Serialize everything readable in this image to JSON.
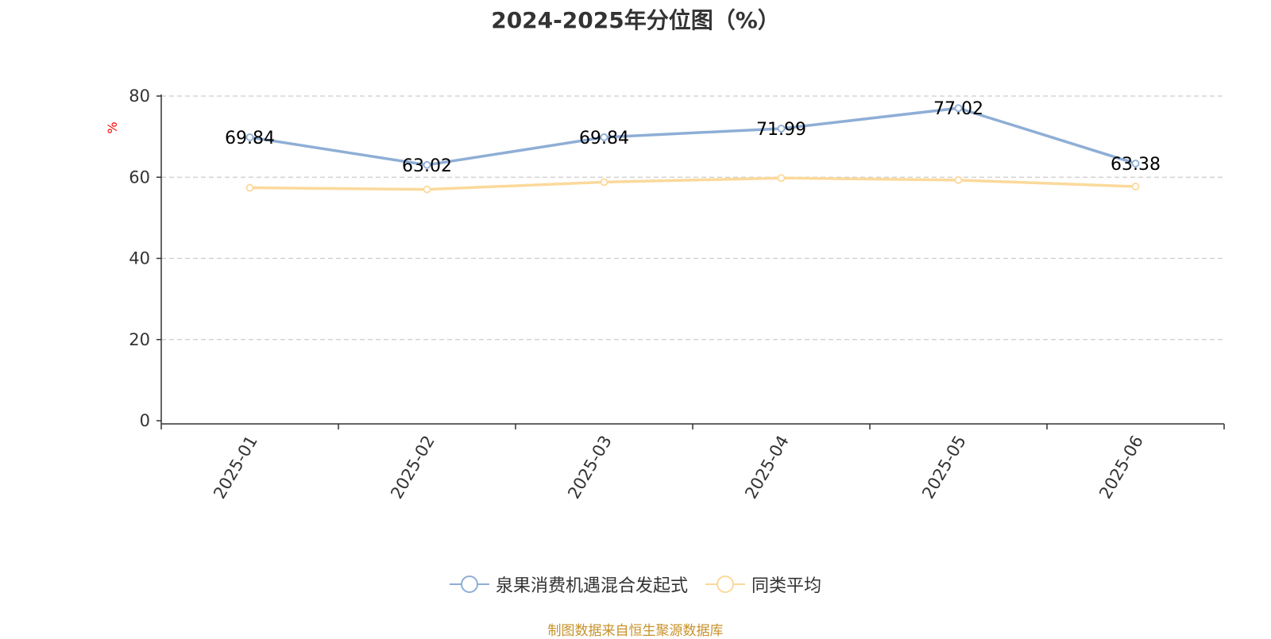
{
  "chart_data": {
    "type": "line",
    "title": "2024-2025年分位图（%）",
    "ylabel": "%",
    "ylabel_color": "#ff0000",
    "ylim": [
      0,
      80
    ],
    "yticks": [
      "0",
      "20",
      "40",
      "60",
      "80"
    ],
    "grid": true,
    "categories": [
      "2025-01",
      "2025-02",
      "2025-03",
      "2025-04",
      "2025-05",
      "2025-06"
    ],
    "series": [
      {
        "name": "泉果消费机遇混合发起式",
        "color": "#8eaed6",
        "values": [
          69.84,
          63.02,
          69.84,
          71.99,
          77.02,
          63.38
        ],
        "labels": [
          "69.84",
          "63.02",
          "69.84",
          "71.99",
          "77.02",
          "63.38"
        ]
      },
      {
        "name": "同类平均",
        "color": "#fbd99b",
        "values": [
          57.4,
          57.0,
          58.8,
          59.8,
          59.3,
          57.7
        ]
      }
    ],
    "legend_position": "bottom"
  },
  "footer": "制图数据来自恒生聚源数据库"
}
